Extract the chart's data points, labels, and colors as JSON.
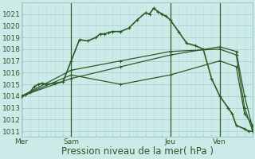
{
  "title": "Pression niveau de la mer( hPa )",
  "background_color": "#cceae7",
  "grid_major_color": "#9ecece",
  "grid_minor_color": "#b8dede",
  "line_color": "#2d5a27",
  "ylim": [
    1010.5,
    1022.0
  ],
  "yticks": [
    1011,
    1012,
    1013,
    1014,
    1015,
    1016,
    1017,
    1018,
    1019,
    1020,
    1021
  ],
  "xlim": [
    0,
    28
  ],
  "day_labels": [
    "Mer",
    "Sam",
    "Jeu",
    "Ven"
  ],
  "day_positions": [
    0,
    6,
    18,
    24
  ],
  "num_x_minor": 28,
  "series": [
    {
      "x": [
        0,
        0.5,
        1,
        1.5,
        2,
        2.5,
        3,
        4,
        5,
        6,
        7,
        8,
        9,
        9.5,
        10,
        10.5,
        11,
        12,
        13,
        14,
        15,
        15.5,
        16,
        16.5,
        17,
        17.5,
        18,
        19,
        20,
        21,
        22,
        23,
        24,
        25,
        25.5,
        26,
        27,
        27.5,
        28
      ],
      "y": [
        1014.0,
        1014.1,
        1014.3,
        1014.8,
        1015.0,
        1015.1,
        1015.0,
        1015.1,
        1015.2,
        1017.0,
        1018.8,
        1018.7,
        1019.0,
        1019.3,
        1019.3,
        1019.4,
        1019.5,
        1019.5,
        1019.8,
        1020.5,
        1021.1,
        1021.0,
        1021.5,
        1021.2,
        1021.0,
        1020.8,
        1020.5,
        1019.5,
        1018.5,
        1018.3,
        1018.0,
        1015.5,
        1014.0,
        1013.0,
        1012.5,
        1011.5,
        1011.2,
        1011.0,
        1011.0
      ],
      "marker": true,
      "linewidth": 1.2
    },
    {
      "x": [
        0,
        6,
        12,
        18,
        24,
        26,
        27,
        28
      ],
      "y": [
        1014.0,
        1015.5,
        1016.5,
        1017.5,
        1018.2,
        1017.8,
        1014.0,
        1011.2
      ],
      "marker": true,
      "linewidth": 0.9
    },
    {
      "x": [
        0,
        6,
        12,
        18,
        24,
        26,
        27,
        28
      ],
      "y": [
        1014.0,
        1016.2,
        1017.0,
        1017.8,
        1018.0,
        1017.5,
        1013.0,
        1011.0
      ],
      "marker": true,
      "linewidth": 0.9
    },
    {
      "x": [
        0,
        6,
        12,
        18,
        24,
        26,
        27,
        28
      ],
      "y": [
        1014.0,
        1015.8,
        1015.0,
        1015.8,
        1017.0,
        1016.5,
        1012.5,
        1011.5
      ],
      "marker": true,
      "linewidth": 0.9
    }
  ],
  "tick_fontsize": 6.5,
  "label_fontsize": 8.5
}
